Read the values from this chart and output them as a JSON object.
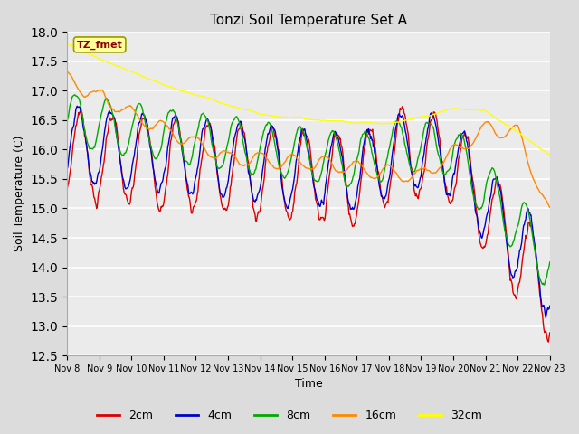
{
  "title": "Tonzi Soil Temperature Set A",
  "xlabel": "Time",
  "ylabel": "Soil Temperature (C)",
  "ylim": [
    12.5,
    18.0
  ],
  "yticks": [
    12.5,
    13.0,
    13.5,
    14.0,
    14.5,
    15.0,
    15.5,
    16.0,
    16.5,
    17.0,
    17.5,
    18.0
  ],
  "xtick_labels": [
    "Nov 8",
    "Nov 9",
    "Nov 10",
    "Nov 11",
    "Nov 12",
    "Nov 13",
    "Nov 14",
    "Nov 15",
    "Nov 16",
    "Nov 17",
    "Nov 18",
    "Nov 19",
    "Nov 20",
    "Nov 21",
    "Nov 22",
    "Nov 23"
  ],
  "n_days": 15,
  "n_points": 720,
  "bg_color": "#dcdcdc",
  "plot_bg_color": "#ebebeb",
  "label_box_color": "#ffff99",
  "label_box_text": "TZ_fmet",
  "label_box_text_color": "#8b0000",
  "lines": [
    {
      "label": "2cm",
      "color": "#dd0000"
    },
    {
      "label": "4cm",
      "color": "#0000cc"
    },
    {
      "label": "8cm",
      "color": "#00aa00"
    },
    {
      "label": "16cm",
      "color": "#ff8800"
    },
    {
      "label": "32cm",
      "color": "#ffff00"
    }
  ],
  "legend_labels": [
    "2cm",
    "4cm",
    "8cm",
    "16cm",
    "32cm"
  ],
  "legend_colors": [
    "#dd0000",
    "#0000cc",
    "#00aa00",
    "#ff8800",
    "#ffff00"
  ]
}
